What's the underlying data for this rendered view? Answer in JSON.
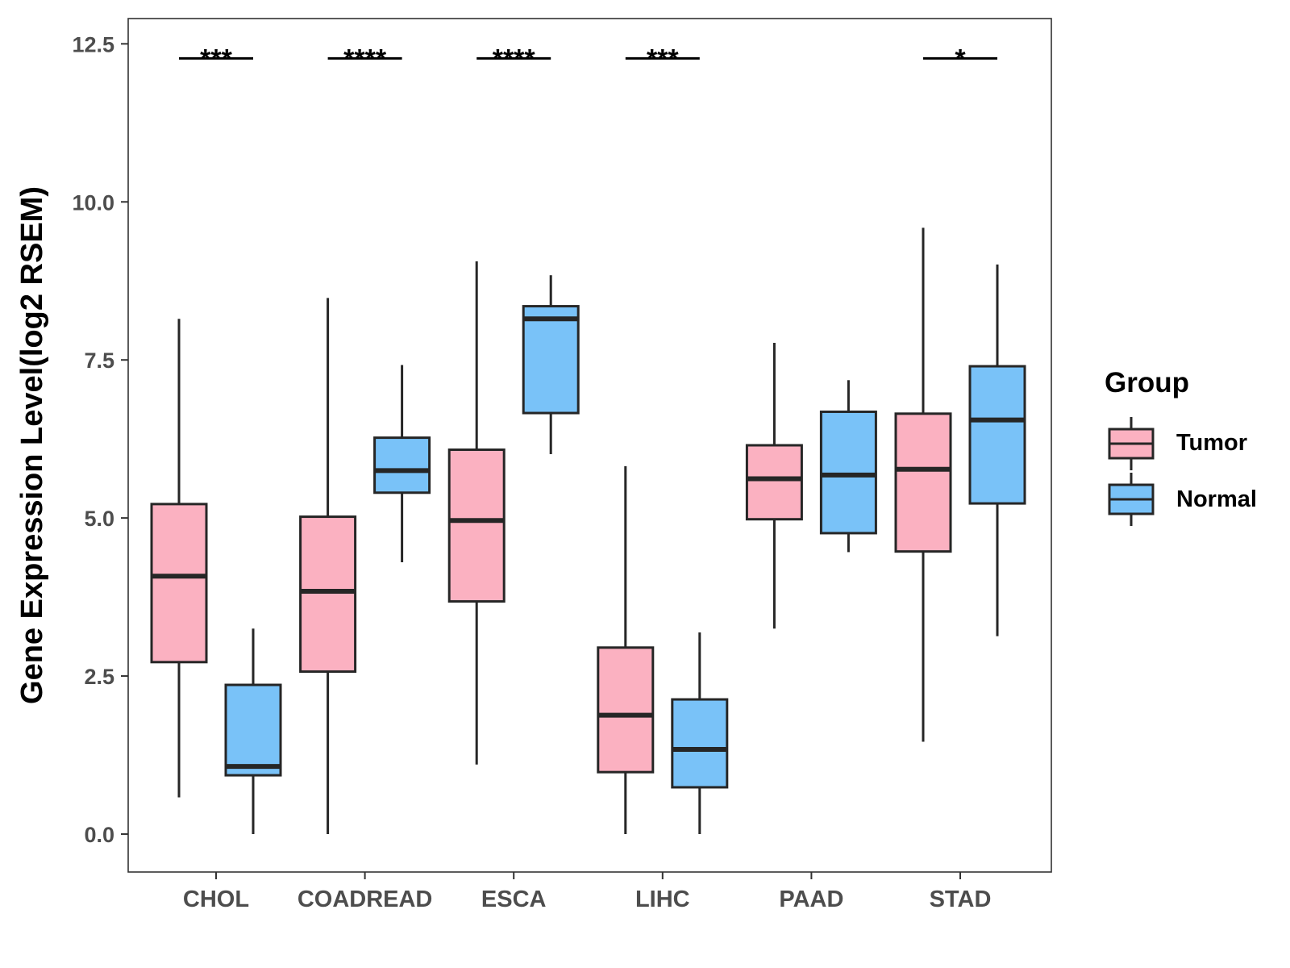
{
  "chart_data": {
    "type": "boxplot",
    "title": "",
    "xlabel": "",
    "ylabel": "Gene Expression Level(log2 RSEM)",
    "ylim": [
      -0.6,
      12.9
    ],
    "yticks": [
      0,
      2.5,
      5,
      7.5,
      10,
      12.5
    ],
    "ytick_labels": [
      "0.0",
      "2.5",
      "5.0",
      "7.5",
      "10.0",
      "12.5"
    ],
    "categories": [
      "CHOL",
      "COADREAD",
      "ESCA",
      "LIHC",
      "PAAD",
      "STAD"
    ],
    "legend": {
      "title": "Group",
      "position": "right",
      "entries": [
        {
          "name": "Tumor",
          "color": "#FBB1C1"
        },
        {
          "name": "Normal",
          "color": "#79C2F8"
        }
      ]
    },
    "series": [
      {
        "name": "Tumor",
        "color": "#FBB1C1",
        "boxes": [
          {
            "min": 0.58,
            "q1": 2.72,
            "median": 4.08,
            "q3": 5.22,
            "max": 8.15
          },
          {
            "min": 0.0,
            "q1": 2.57,
            "median": 3.84,
            "q3": 5.02,
            "max": 8.48
          },
          {
            "min": 1.1,
            "q1": 3.68,
            "median": 4.96,
            "q3": 6.08,
            "max": 9.06
          },
          {
            "min": 0.0,
            "q1": 0.98,
            "median": 1.88,
            "q3": 2.95,
            "max": 5.82
          },
          {
            "min": 3.25,
            "q1": 4.98,
            "median": 5.62,
            "q3": 6.15,
            "max": 7.77
          },
          {
            "min": 1.46,
            "q1": 4.47,
            "median": 5.77,
            "q3": 6.65,
            "max": 9.59
          }
        ]
      },
      {
        "name": "Normal",
        "color": "#79C2F8",
        "boxes": [
          {
            "min": 0.0,
            "q1": 0.93,
            "median": 1.07,
            "q3": 2.36,
            "max": 3.25
          },
          {
            "min": 4.3,
            "q1": 5.4,
            "median": 5.75,
            "q3": 6.27,
            "max": 7.42
          },
          {
            "min": 6.01,
            "q1": 6.66,
            "median": 8.15,
            "q3": 8.35,
            "max": 8.84
          },
          {
            "min": 0.0,
            "q1": 0.74,
            "median": 1.34,
            "q3": 2.13,
            "max": 3.19
          },
          {
            "min": 4.46,
            "q1": 4.76,
            "median": 5.68,
            "q3": 6.68,
            "max": 7.18
          },
          {
            "min": 3.13,
            "q1": 5.23,
            "median": 6.55,
            "q3": 7.4,
            "max": 9.01
          }
        ]
      }
    ],
    "significance": [
      "***",
      "****",
      "****",
      "***",
      "",
      "*"
    ],
    "significance_y": 12.27
  }
}
